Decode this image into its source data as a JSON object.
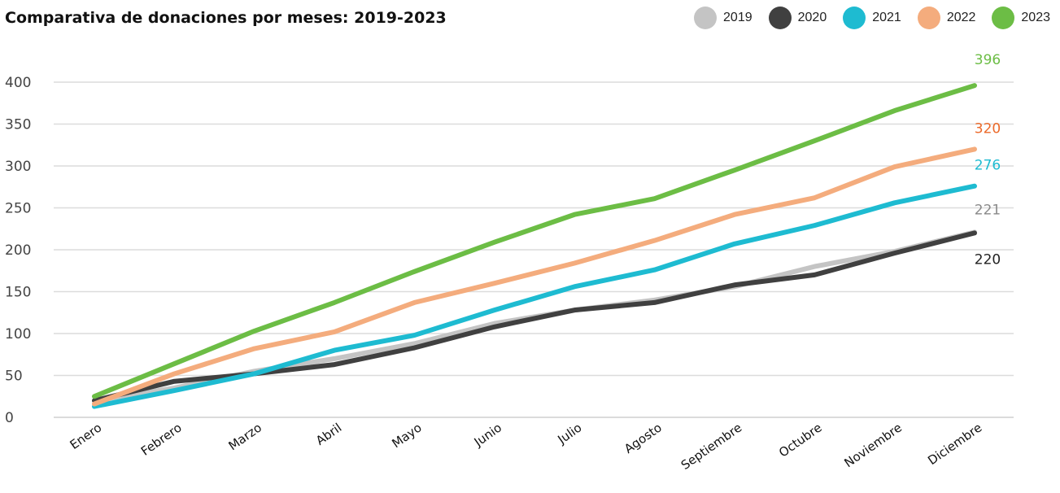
{
  "chart_data": {
    "type": "line",
    "title": "Comparativa de donaciones por meses: 2019-2023",
    "xlabel": "",
    "ylabel": "",
    "ylim": [
      0,
      400
    ],
    "yticks": [
      0,
      50,
      100,
      150,
      200,
      250,
      300,
      350,
      400
    ],
    "grid": true,
    "legend_position": "top-right",
    "categories": [
      "Enero",
      "Febrero",
      "Marzo",
      "Abril",
      "Mayo",
      "Junio",
      "Julio",
      "Agosto",
      "Septiembre",
      "Octubre",
      "Noviembre",
      "Diciembre"
    ],
    "series": [
      {
        "name": "2019",
        "color": "#c4c4c4",
        "label_color": "#8a8a8a",
        "end_label": "221",
        "values": [
          20,
          35,
          55,
          70,
          88,
          112,
          128,
          140,
          156,
          180,
          198,
          221
        ]
      },
      {
        "name": "2020",
        "color": "#404040",
        "label_color": "#222222",
        "end_label": "220",
        "values": [
          20,
          43,
          52,
          63,
          83,
          108,
          128,
          137,
          158,
          170,
          196,
          220
        ]
      },
      {
        "name": "2021",
        "color": "#1ebbd1",
        "label_color": "#1ebbd1",
        "end_label": "276",
        "values": [
          13,
          32,
          52,
          80,
          98,
          128,
          156,
          176,
          207,
          229,
          256,
          276
        ]
      },
      {
        "name": "2022",
        "color": "#f4ac7d",
        "label_color": "#ec6a2a",
        "end_label": "320",
        "values": [
          16,
          52,
          82,
          102,
          137,
          160,
          184,
          211,
          242,
          262,
          299,
          320
        ]
      },
      {
        "name": "2023",
        "color": "#6cbd45",
        "label_color": "#6cbd45",
        "end_label": "396",
        "values": [
          25,
          64,
          103,
          137,
          174,
          209,
          242,
          261,
          295,
          330,
          366,
          396
        ]
      }
    ]
  }
}
